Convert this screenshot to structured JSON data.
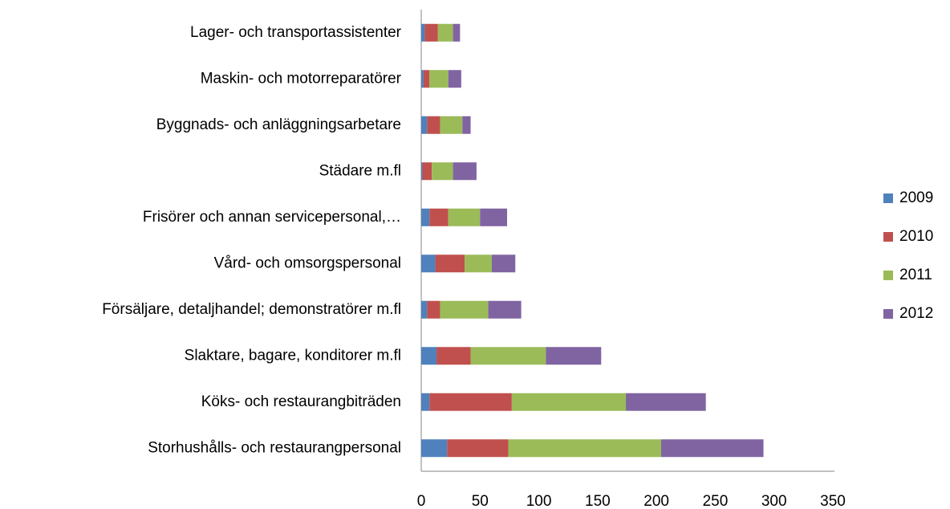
{
  "chart_data": {
    "type": "stacked_barh",
    "categories": [
      "Lager- och transportassistenter",
      "Maskin- och motorreparatörer",
      "Byggnads- och anläggningsarbetare",
      "Städare m.fl",
      "Frisörer och annan servicepersonal,…",
      "Vård- och omsorgspersonal",
      "Försäljare, detaljhandel; demonstratörer m.fl",
      "Slaktare, bagare, konditorer m.fl",
      "Köks- och restaurangbiträden",
      "Storhushålls- och restaurangpersonal"
    ],
    "series": [
      {
        "name": "2009",
        "color": "#4f81bd",
        "values": [
          3,
          2,
          5,
          1,
          7,
          12,
          5,
          13,
          7,
          22
        ]
      },
      {
        "name": "2010",
        "color": "#c0504d",
        "values": [
          11,
          5,
          11,
          8,
          16,
          25,
          11,
          29,
          70,
          52
        ]
      },
      {
        "name": "2011",
        "color": "#9bbb59",
        "values": [
          13,
          16,
          19,
          18,
          27,
          23,
          41,
          64,
          97,
          130
        ]
      },
      {
        "name": "2012",
        "color": "#8064a2",
        "values": [
          6,
          11,
          7,
          20,
          23,
          20,
          28,
          47,
          68,
          87
        ]
      }
    ],
    "xlim": [
      0,
      350
    ],
    "xticks": [
      0,
      50,
      100,
      150,
      200,
      250,
      300,
      350
    ],
    "grid": false,
    "legend": "right"
  }
}
